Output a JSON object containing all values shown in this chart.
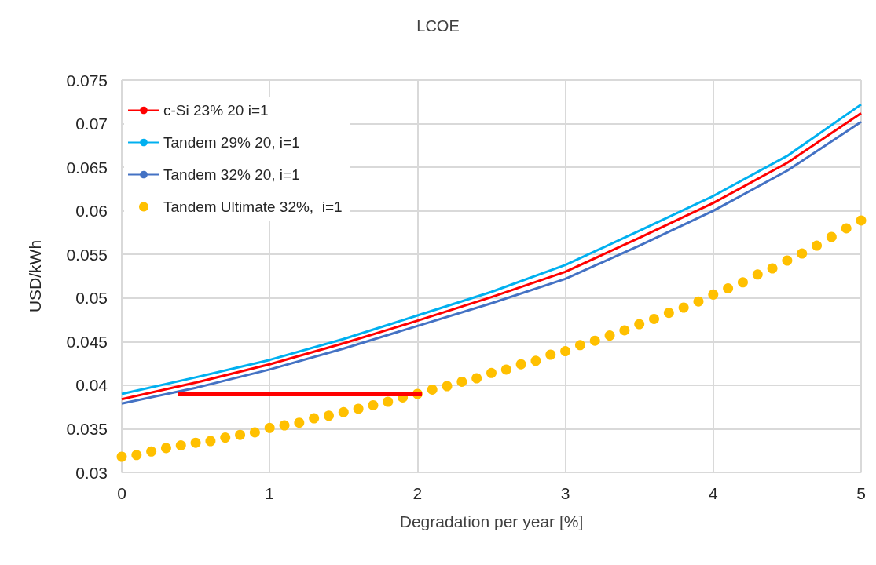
{
  "chart_data": {
    "type": "line",
    "title": "LCOE",
    "xlabel": "Degradation per year [%]",
    "ylabel": "USD/kWh",
    "xlim": [
      0,
      5
    ],
    "xticks": [
      0,
      1,
      2,
      3,
      4,
      5
    ],
    "ylim": [
      0.03,
      0.075
    ],
    "yticks": [
      0.03,
      0.035,
      0.04,
      0.045,
      0.05,
      0.055,
      0.06,
      0.065,
      0.07,
      0.075
    ],
    "grid": true,
    "legend": "top left",
    "line_style": "solid",
    "series": [
      {
        "name": "c-Si 23% 20 i=1",
        "color": "#ff0000",
        "marker": "none",
        "x": [
          0,
          0.5,
          1,
          1.5,
          2,
          2.5,
          3,
          3.5,
          4,
          4.5,
          5
        ],
        "values": [
          0.0384,
          0.0403,
          0.0424,
          0.0448,
          0.0474,
          0.0501,
          0.053,
          0.0569,
          0.0609,
          0.0655,
          0.0712
        ]
      },
      {
        "name": "Tandem 29% 20, i=1",
        "color": "#00b0f0",
        "marker": "none",
        "x": [
          0,
          0.5,
          1,
          1.5,
          2,
          2.5,
          3,
          3.5,
          4,
          4.5,
          5
        ],
        "values": [
          0.039,
          0.0409,
          0.0429,
          0.0453,
          0.048,
          0.0507,
          0.0538,
          0.0577,
          0.0617,
          0.0663,
          0.0722
        ]
      },
      {
        "name": "Tandem 32% 20, i=1",
        "color": "#4472c4",
        "marker": "none",
        "x": [
          0,
          0.5,
          1,
          1.5,
          2,
          2.5,
          3,
          3.5,
          4,
          4.5,
          5
        ],
        "values": [
          0.0379,
          0.0397,
          0.0418,
          0.0442,
          0.0468,
          0.0494,
          0.0522,
          0.056,
          0.06,
          0.0646,
          0.0702
        ]
      },
      {
        "name": "Tandem Ultimate 32%,  i=1",
        "type": "scatter",
        "color": "#ffc000",
        "marker": "circle",
        "x": [
          0,
          0.1,
          0.2,
          0.3,
          0.4,
          0.5,
          0.6,
          0.7,
          0.8,
          0.9,
          1,
          1.1,
          1.2,
          1.3,
          1.4,
          1.5,
          1.6,
          1.7,
          1.8,
          1.9,
          2,
          2.1,
          2.2,
          2.3,
          2.4,
          2.5,
          2.6,
          2.7,
          2.8,
          2.9,
          3,
          3.1,
          3.2,
          3.3,
          3.4,
          3.5,
          3.6,
          3.7,
          3.8,
          3.9,
          4,
          4.1,
          4.2,
          4.3,
          4.4,
          4.5,
          4.6,
          4.7,
          4.8,
          4.9,
          5
        ],
        "values": [
          0.0318,
          0.032,
          0.0324,
          0.0328,
          0.0331,
          0.0334,
          0.0336,
          0.034,
          0.0343,
          0.0346,
          0.0351,
          0.0354,
          0.0357,
          0.0362,
          0.0365,
          0.0369,
          0.0373,
          0.0377,
          0.0381,
          0.0386,
          0.039,
          0.0395,
          0.0399,
          0.0404,
          0.0408,
          0.0414,
          0.0418,
          0.0424,
          0.0428,
          0.0435,
          0.0439,
          0.0446,
          0.0451,
          0.0457,
          0.0463,
          0.047,
          0.0476,
          0.0483,
          0.0489,
          0.0496,
          0.0504,
          0.0511,
          0.0518,
          0.0527,
          0.0534,
          0.0543,
          0.0551,
          0.056,
          0.057,
          0.058,
          0.0589
        ]
      },
      {
        "type": "line",
        "color": "#ff0000",
        "marker": "none",
        "x": [
          0.38,
          2.03
        ],
        "values": [
          0.039,
          0.039
        ]
      }
    ]
  }
}
